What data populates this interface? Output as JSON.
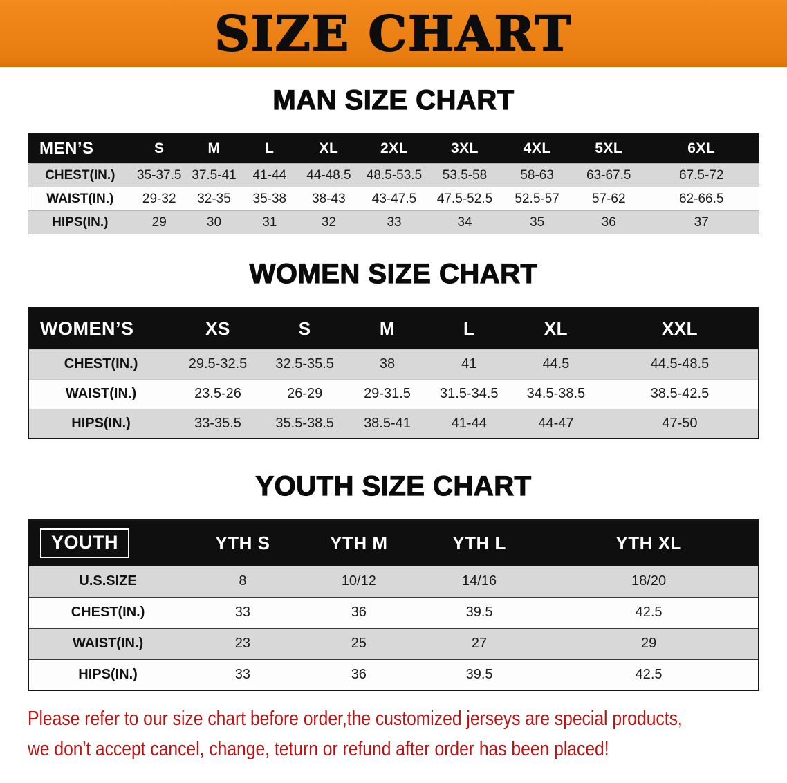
{
  "banner": {
    "title": "SIZE CHART"
  },
  "sections": [
    {
      "id": "men",
      "heading": "MAN SIZE CHART",
      "header": [
        "MEN’S",
        "S",
        "M",
        "L",
        "XL",
        "2XL",
        "3XL",
        "4XL",
        "5XL",
        "6XL"
      ],
      "rows": [
        [
          "CHEST(IN.)",
          "35-37.5",
          "37.5-41",
          "41-44",
          "44-48.5",
          "48.5-53.5",
          "53.5-58",
          "58-63",
          "63-67.5",
          "67.5-72"
        ],
        [
          "WAIST(IN.)",
          "29-32",
          "32-35",
          "35-38",
          "38-43",
          "43-47.5",
          "47.5-52.5",
          "52.5-57",
          "57-62",
          "62-66.5"
        ],
        [
          "HIPS(IN.)",
          "29",
          "30",
          "31",
          "32",
          "33",
          "34",
          "35",
          "36",
          "37"
        ]
      ]
    },
    {
      "id": "women",
      "heading": "WOMEN SIZE CHART",
      "header": [
        "WOMEN’S",
        "XS",
        "S",
        "M",
        "L",
        "XL",
        "XXL"
      ],
      "rows": [
        [
          "CHEST(IN.)",
          "29.5-32.5",
          "32.5-35.5",
          "38",
          "41",
          "44.5",
          "44.5-48.5"
        ],
        [
          "WAIST(IN.)",
          "23.5-26",
          "26-29",
          "29-31.5",
          "31.5-34.5",
          "34.5-38.5",
          "38.5-42.5"
        ],
        [
          "HIPS(IN.)",
          "33-35.5",
          "35.5-38.5",
          "38.5-41",
          "41-44",
          "44-47",
          "47-50"
        ]
      ]
    },
    {
      "id": "youth",
      "heading": "YOUTH SIZE CHART",
      "header": [
        "YOUTH",
        "YTH S",
        "YTH M",
        "YTH L",
        "YTH XL"
      ],
      "rows": [
        [
          "U.S.SIZE",
          "8",
          "10/12",
          "14/16",
          "18/20"
        ],
        [
          "CHEST(IN.)",
          "33",
          "36",
          "39.5",
          "42.5"
        ],
        [
          "WAIST(IN.)",
          "23",
          "25",
          "27",
          "29"
        ],
        [
          "HIPS(IN.)",
          "33",
          "36",
          "39.5",
          "42.5"
        ]
      ]
    }
  ],
  "disclaimer": {
    "line1": "Please refer to our size chart before order,the customized jerseys are special products,",
    "line2": "we don't accept cancel, change, teturn or refund after order has been placed!"
  },
  "colors": {
    "banner_bg": "#EC8214",
    "table_header_bg": "#0F0F0F",
    "row_stripe": "#D8D8D8",
    "disclaimer_text": "#BE1212",
    "heading_text": "#0A0A0A"
  }
}
